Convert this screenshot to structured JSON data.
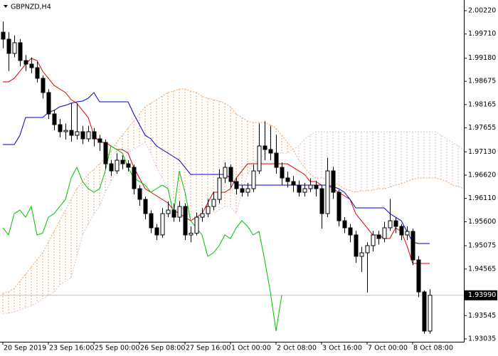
{
  "chart_data": {
    "type": "candlestick",
    "title": "GBPNZD,H4",
    "categories": [
      "20 Sep 2019",
      null,
      null,
      null,
      null,
      null,
      null,
      null,
      "23 Sep 16:00",
      null,
      null,
      null,
      null,
      null,
      null,
      null,
      "25 Sep 00:00",
      null,
      null,
      null,
      null,
      null,
      null,
      null,
      "26 Sep 08:00",
      null,
      null,
      null,
      null,
      null,
      null,
      null,
      "27 Sep 16:00",
      null,
      null,
      null,
      null,
      null,
      null,
      null,
      "1 Oct 00:00",
      null,
      null,
      null,
      null,
      null,
      null,
      null,
      "2 Oct 08:00",
      null,
      null,
      null,
      null,
      null,
      null,
      null,
      "3 Oct 16:00",
      null,
      null,
      null,
      null,
      null,
      null,
      null,
      "7 Oct 00:00",
      null,
      null,
      null,
      null,
      null,
      null,
      null,
      "8 Oct 08:00",
      null,
      null,
      null,
      null,
      null,
      null,
      null,
      null,
      null
    ],
    "open": [
      1.9975,
      1.99597,
      1.99285,
      1.99519,
      1.99129,
      1.99051,
      1.98973,
      1.9874,
      1.98428,
      1.9796,
      1.97726,
      1.97571,
      1.976,
      1.97493,
      1.97571,
      1.97415,
      1.97571,
      1.97415,
      1.97337,
      1.96869,
      1.96713,
      1.96947,
      1.96869,
      1.96791,
      1.96324,
      1.9609,
      1.95778,
      1.95467,
      1.95311,
      1.95778,
      1.95856,
      1.957,
      1.95934,
      1.95311,
      1.9535,
      1.957,
      1.95778,
      1.95934,
      1.9609,
      1.96558,
      1.96791,
      1.9648,
      1.96324,
      1.96246,
      1.96324,
      1.96713,
      1.97259,
      1.97181,
      1.97103,
      1.96791,
      1.96558,
      1.9648,
      1.96402,
      1.96246,
      1.96324,
      1.96402,
      1.96324,
      1.95778,
      1.96713,
      1.96246,
      1.95622,
      1.95467,
      1.95311,
      1.94843,
      1.94921,
      1.95077,
      1.95311,
      1.95233,
      1.95467,
      1.95622,
      1.95498,
      1.95311,
      1.95389,
      1.94765,
      1.94064,
      1.93207,
      null,
      null,
      null,
      null,
      null,
      null
    ],
    "high": [
      1.99985,
      1.9975,
      1.9968,
      1.996,
      1.9925,
      1.992,
      1.991,
      1.988,
      1.985,
      1.9805,
      1.9785,
      1.9775,
      1.98194,
      1.982,
      1.977,
      1.977,
      1.9765,
      1.975,
      1.974,
      1.9695,
      1.971,
      1.9705,
      1.9695,
      1.9685,
      1.964,
      1.9615,
      1.9585,
      1.9555,
      1.959,
      1.9605,
      1.96,
      1.9605,
      1.96,
      1.955,
      1.958,
      1.959,
      1.961,
      1.9625,
      1.9675,
      1.969,
      1.9685,
      1.9655,
      1.964,
      1.9645,
      1.9685,
      1.9775,
      1.978,
      1.977,
      1.975,
      1.969,
      1.967,
      1.966,
      1.965,
      1.9645,
      1.9655,
      1.965,
      1.964,
      1.97,
      1.968,
      1.963,
      1.957,
      1.9555,
      1.954,
      1.9505,
      1.9515,
      1.954,
      1.954,
      1.956,
      1.961,
      1.957,
      1.9555,
      1.955,
      1.9545,
      1.9485,
      1.941,
      1.9412,
      null,
      null,
      null,
      null,
      null,
      null
    ],
    "low": [
      1.994,
      1.989,
      1.992,
      1.99,
      1.989,
      1.9885,
      1.9865,
      1.983,
      1.9785,
      1.976,
      1.9745,
      1.974,
      1.9735,
      1.974,
      1.973,
      1.9735,
      1.9725,
      1.9715,
      1.9675,
      1.966,
      1.9665,
      1.9675,
      1.967,
      1.962,
      1.9595,
      1.9565,
      1.9535,
      1.952,
      1.9525,
      1.957,
      1.956,
      1.956,
      1.952,
      1.9515,
      1.953,
      1.956,
      1.957,
      1.9585,
      1.96,
      1.9645,
      1.9635,
      1.962,
      1.9615,
      1.9615,
      1.9625,
      1.9665,
      1.9695,
      1.9695,
      1.9665,
      1.964,
      1.9635,
      1.9625,
      1.9615,
      1.9615,
      1.9625,
      1.9615,
      1.9545,
      1.957,
      1.961,
      1.955,
      1.9535,
      1.9515,
      1.947,
      1.945,
      1.9405,
      1.9495,
      1.951,
      1.9515,
      1.954,
      1.9535,
      1.952,
      1.952,
      1.9465,
      1.9395,
      1.9315,
      1.9315,
      null,
      null,
      null,
      null,
      null,
      null
    ],
    "close": [
      1.99597,
      1.99285,
      1.99519,
      1.99129,
      1.99051,
      1.98973,
      1.9874,
      1.98428,
      1.9796,
      1.97726,
      1.97571,
      1.976,
      1.97493,
      1.97571,
      1.97415,
      1.97571,
      1.97415,
      1.97337,
      1.96869,
      1.96713,
      1.96947,
      1.96869,
      1.96791,
      1.96324,
      1.9609,
      1.95778,
      1.95467,
      1.95311,
      1.95778,
      1.95856,
      1.957,
      1.95934,
      1.95311,
      1.9535,
      1.957,
      1.95778,
      1.95934,
      1.9609,
      1.96558,
      1.96791,
      1.9648,
      1.96324,
      1.96246,
      1.96324,
      1.96713,
      1.97259,
      1.97181,
      1.97103,
      1.96791,
      1.96558,
      1.9648,
      1.96402,
      1.96246,
      1.96324,
      1.96402,
      1.96324,
      1.95778,
      1.96713,
      1.96246,
      1.95622,
      1.95467,
      1.95311,
      1.94843,
      1.94921,
      1.95077,
      1.95311,
      1.95233,
      1.95467,
      1.95622,
      1.95498,
      1.95311,
      1.95389,
      1.94765,
      1.94064,
      1.93207,
      1.9399,
      null,
      null,
      null,
      null,
      null,
      null
    ],
    "bull_color": "#ffffff",
    "bear_color": "#000000",
    "cloud": {
      "up_color": "#f4a460",
      "down_color": "#d8bfd8",
      "span_a": [
        1.94033,
        1.94064,
        1.94142,
        1.94298,
        1.94454,
        1.9461,
        1.94765,
        1.94921,
        1.95155,
        1.95389,
        1.95622,
        1.95856,
        1.9609,
        1.96324,
        1.9648,
        1.96636,
        1.96745,
        1.96869,
        1.96994,
        1.9715,
        1.97337,
        1.97493,
        1.97649,
        1.97804,
        1.9796,
        1.98116,
        1.98194,
        1.98272,
        1.9835,
        1.98428,
        1.98459,
        1.98506,
        1.98506,
        1.98459,
        1.98428,
        1.9835,
        1.98303,
        1.98272,
        1.98241,
        1.98194,
        1.98116,
        1.9796,
        1.97882,
        1.97804,
        1.97773,
        1.97773,
        1.97773,
        1.97726,
        1.97649,
        1.97493,
        1.97337,
        1.97181,
        1.96947,
        1.96791,
        1.96636,
        1.96558,
        1.96558,
        1.96527,
        1.9648,
        1.96402,
        1.96324,
        1.96277,
        1.96246,
        1.96277,
        1.96277,
        1.96293,
        1.96324,
        1.96324,
        1.96355,
        1.96402,
        1.96433,
        1.9648,
        1.96527,
        1.96558,
        1.96558,
        1.96558,
        1.96558,
        1.96527,
        1.9648,
        1.96402,
        1.9637,
        1.96324
      ],
      "span_b": [
        1.93597,
        1.93597,
        1.93627,
        1.93674,
        1.93721,
        1.93753,
        1.93831,
        1.93909,
        1.93986,
        1.94064,
        1.9422,
        1.94298,
        1.94376,
        1.94843,
        1.95311,
        1.95545,
        1.95778,
        1.95934,
        1.96246,
        1.9648,
        1.96713,
        1.96947,
        1.97103,
        1.97181,
        1.97259,
        1.97337,
        1.97103,
        1.96791,
        1.96558,
        1.96324,
        1.9609,
        1.95934,
        1.95856,
        1.957,
        1.95622,
        1.957,
        1.95778,
        1.95778,
        1.95856,
        1.95934,
        1.95934,
        1.95778,
        1.96246,
        1.96636,
        1.96869,
        1.96947,
        1.97103,
        1.97103,
        1.97103,
        1.97103,
        1.97103,
        1.97181,
        1.97259,
        1.97415,
        1.97493,
        1.97571,
        1.97571,
        1.97571,
        1.97571,
        1.97571,
        1.97571,
        1.97571,
        1.97571,
        1.97571,
        1.97571,
        1.97571,
        1.97571,
        1.97571,
        1.97571,
        1.97571,
        1.97571,
        1.97571,
        1.97571,
        1.97571,
        1.97571,
        1.97571,
        1.97571,
        1.97493,
        1.97415,
        1.97337,
        1.97259,
        1.97181
      ]
    },
    "lines": [
      {
        "color": "#e00000",
        "values": [
          1.98662,
          1.98662,
          1.9874,
          1.98895,
          1.99051,
          1.99176,
          1.99129,
          1.98895,
          1.9874,
          1.98584,
          1.98506,
          1.98428,
          1.98272,
          1.98194,
          1.98038,
          1.97882,
          1.97493,
          1.97337,
          1.97337,
          1.97259,
          1.97181,
          1.97181,
          1.97103,
          1.96791,
          1.96558,
          1.96324,
          1.96246,
          1.96168,
          1.9609,
          1.96012,
          1.95856,
          1.95778,
          1.957,
          1.95622,
          1.957,
          1.95778,
          1.96012,
          1.96246,
          1.96246,
          1.96246,
          1.96324,
          1.96558,
          1.96713,
          1.96869,
          1.96869,
          1.96869,
          1.96869,
          1.96869,
          1.96869,
          1.96869,
          1.96869,
          1.96791,
          1.96713,
          1.96636,
          1.9648,
          1.9648,
          1.96402,
          1.96402,
          1.96324,
          1.96246,
          1.96168,
          1.9609,
          1.95778,
          1.95622,
          1.95467,
          1.95311,
          1.95311,
          1.95233,
          1.95233,
          1.95467,
          1.95389,
          1.95077,
          1.94688,
          1.94688,
          1.94688,
          1.94688,
          null,
          null,
          null,
          null,
          null,
          null
        ]
      },
      {
        "color": "#0000c8",
        "values": [
          1.9729,
          1.9729,
          1.9729,
          1.97493,
          1.97882,
          1.97882,
          1.97882,
          1.97882,
          1.97991,
          1.98038,
          1.98116,
          1.98147,
          1.98194,
          1.98225,
          1.98241,
          1.98303,
          1.98428,
          1.98225,
          1.98225,
          1.98225,
          1.98225,
          1.98225,
          1.98225,
          1.9796,
          1.97726,
          1.97493,
          1.97415,
          1.97259,
          1.97181,
          1.97103,
          1.97025,
          1.96947,
          1.96791,
          1.96636,
          1.96636,
          1.96636,
          1.96636,
          1.96636,
          1.96636,
          1.96636,
          1.96558,
          1.96402,
          1.96402,
          1.96402,
          1.96402,
          1.96402,
          1.96402,
          1.96402,
          1.96402,
          1.96402,
          1.96402,
          1.96402,
          1.96402,
          1.96402,
          1.96402,
          1.96402,
          1.96402,
          1.96402,
          1.9637,
          1.96324,
          1.96246,
          1.9609,
          1.95903,
          1.95903,
          1.95903,
          1.95903,
          1.95903,
          1.95903,
          1.95778,
          1.957,
          1.95622,
          1.95389,
          1.95155,
          1.95124,
          1.95124,
          1.95124,
          null,
          null,
          null,
          null,
          null,
          null
        ]
      },
      {
        "color": "#00c000",
        "values": [
          1.95467,
          1.95311,
          1.95778,
          1.95856,
          1.957,
          1.95934,
          1.95311,
          1.9535,
          1.957,
          1.95778,
          1.95934,
          1.9609,
          1.96558,
          1.96791,
          1.9648,
          1.96324,
          1.96246,
          1.96324,
          1.96713,
          1.97259,
          1.97181,
          1.97103,
          1.96791,
          1.96558,
          1.9648,
          1.96402,
          1.96246,
          1.96324,
          1.96402,
          1.96324,
          1.95778,
          1.96713,
          1.96246,
          1.95622,
          1.95467,
          1.95311,
          1.94843,
          1.94921,
          1.95077,
          1.95311,
          1.95233,
          1.95467,
          1.95622,
          1.95498,
          1.95311,
          1.95389,
          1.94765,
          1.94064,
          1.93207,
          1.9399,
          null,
          null,
          null,
          null,
          null,
          null,
          null,
          null,
          null,
          null,
          null,
          null,
          null,
          null,
          null,
          null,
          null,
          null,
          null,
          null,
          null,
          null,
          null,
          null,
          null,
          null,
          null,
          null,
          null,
          null,
          null,
          null
        ]
      }
    ],
    "ylim": [
      1.92973,
      2.00454
    ],
    "yticks": [
      {
        "value": 2.0022,
        "label": "2.00220"
      },
      {
        "value": 1.9971,
        "label": "1.99710"
      },
      {
        "value": 1.9918,
        "label": "1.99180"
      },
      {
        "value": 1.98675,
        "label": "1.98675"
      },
      {
        "value": 1.98165,
        "label": "1.98165"
      },
      {
        "value": 1.97655,
        "label": "1.97655"
      },
      {
        "value": 1.9713,
        "label": "1.97130"
      },
      {
        "value": 1.9662,
        "label": "1.96620"
      },
      {
        "value": 1.9611,
        "label": "1.96110"
      },
      {
        "value": 1.956,
        "label": "1.95600"
      },
      {
        "value": 1.95075,
        "label": "1.95075"
      },
      {
        "value": 1.94565,
        "label": "1.94565"
      },
      {
        "value": 1.93545,
        "label": "1.93545"
      },
      {
        "value": 1.93035,
        "label": "1.93035"
      }
    ],
    "current_price": {
      "value": 1.9399,
      "label": "1.93990"
    }
  }
}
